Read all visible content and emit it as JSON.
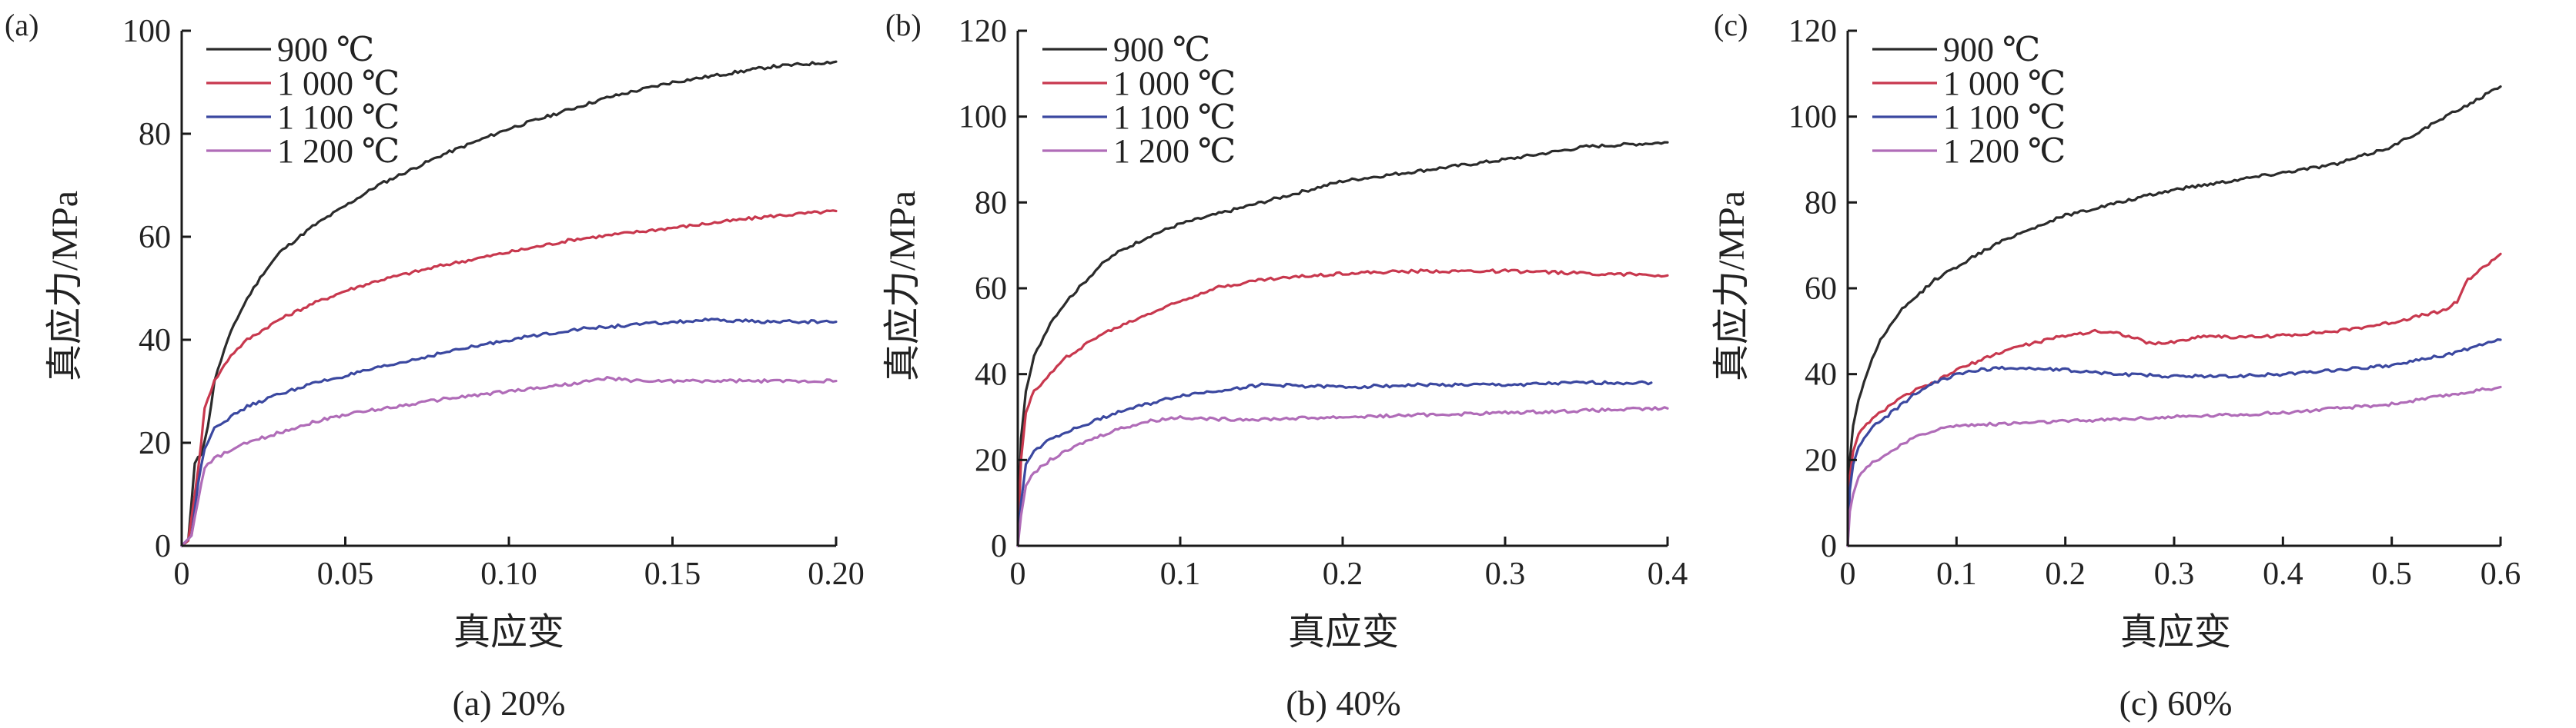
{
  "chart_data": [
    {
      "type": "line",
      "panel_tag": "(a)",
      "caption": "(a) 20%",
      "xlabel": "真应变",
      "ylabel": "真应力/MPa",
      "xlim": [
        0,
        0.2
      ],
      "ylim": [
        0,
        100
      ],
      "xticks": [
        "0",
        "0.05",
        "0.10",
        "0.15",
        "0.20"
      ],
      "yticks": [
        "0",
        "20",
        "40",
        "60",
        "80",
        "100"
      ],
      "legend": "top-left",
      "series": [
        {
          "name": "900 ℃",
          "color": "#2b2b2b",
          "points": [
            [
              0,
              0
            ],
            [
              0.002,
              1
            ],
            [
              0.004,
              16
            ],
            [
              0.005,
              17
            ],
            [
              0.006,
              18
            ],
            [
              0.008,
              23
            ],
            [
              0.01,
              32
            ],
            [
              0.013,
              38
            ],
            [
              0.016,
              43
            ],
            [
              0.02,
              48
            ],
            [
              0.025,
              53
            ],
            [
              0.03,
              57
            ],
            [
              0.04,
              62
            ],
            [
              0.05,
              66
            ],
            [
              0.06,
              70
            ],
            [
              0.07,
              73
            ],
            [
              0.08,
              76
            ],
            [
              0.09,
              78.5
            ],
            [
              0.1,
              81
            ],
            [
              0.11,
              83
            ],
            [
              0.12,
              85
            ],
            [
              0.13,
              87
            ],
            [
              0.14,
              88.5
            ],
            [
              0.15,
              90
            ],
            [
              0.16,
              91
            ],
            [
              0.17,
              92
            ],
            [
              0.18,
              93
            ],
            [
              0.19,
              93.5
            ],
            [
              0.2,
              94
            ]
          ]
        },
        {
          "name": "1 000 ℃",
          "color": "#c8384e",
          "points": [
            [
              0,
              0
            ],
            [
              0.002,
              1
            ],
            [
              0.004,
              10
            ],
            [
              0.006,
              20
            ],
            [
              0.007,
              27
            ],
            [
              0.01,
              32
            ],
            [
              0.015,
              37
            ],
            [
              0.02,
              40
            ],
            [
              0.03,
              44
            ],
            [
              0.04,
              47
            ],
            [
              0.05,
              49.5
            ],
            [
              0.06,
              51.5
            ],
            [
              0.08,
              54.5
            ],
            [
              0.1,
              57
            ],
            [
              0.12,
              59.5
            ],
            [
              0.14,
              61
            ],
            [
              0.16,
              62.5
            ],
            [
              0.18,
              64
            ],
            [
              0.2,
              65
            ]
          ]
        },
        {
          "name": "1 100 ℃",
          "color": "#3b48a0",
          "points": [
            [
              0,
              0
            ],
            [
              0.003,
              2
            ],
            [
              0.005,
              12
            ],
            [
              0.007,
              19
            ],
            [
              0.01,
              23
            ],
            [
              0.015,
              25
            ],
            [
              0.02,
              27
            ],
            [
              0.03,
              29.5
            ],
            [
              0.04,
              31.5
            ],
            [
              0.05,
              33
            ],
            [
              0.06,
              34.5
            ],
            [
              0.08,
              37.5
            ],
            [
              0.1,
              40
            ],
            [
              0.12,
              42
            ],
            [
              0.14,
              43
            ],
            [
              0.16,
              43.8
            ],
            [
              0.18,
              43.5
            ],
            [
              0.2,
              43.5
            ]
          ]
        },
        {
          "name": "1 200 ℃",
          "color": "#b06cb8",
          "points": [
            [
              0,
              0
            ],
            [
              0.003,
              2
            ],
            [
              0.005,
              9
            ],
            [
              0.007,
              15
            ],
            [
              0.01,
              17
            ],
            [
              0.015,
              18.5
            ],
            [
              0.02,
              20
            ],
            [
              0.03,
              22
            ],
            [
              0.04,
              24
            ],
            [
              0.05,
              25.5
            ],
            [
              0.06,
              26.5
            ],
            [
              0.08,
              28.5
            ],
            [
              0.1,
              30
            ],
            [
              0.12,
              31.5
            ],
            [
              0.13,
              32.5
            ],
            [
              0.14,
              32
            ],
            [
              0.16,
              32
            ],
            [
              0.18,
              32
            ],
            [
              0.2,
              32
            ]
          ]
        }
      ]
    },
    {
      "type": "line",
      "panel_tag": "(b)",
      "caption": "(b) 40%",
      "xlabel": "真应变",
      "ylabel": "真应力/MPa",
      "xlim": [
        0,
        0.4
      ],
      "ylim": [
        0,
        120
      ],
      "xticks": [
        "0",
        "0.1",
        "0.2",
        "0.3",
        "0.4"
      ],
      "yticks": [
        "0",
        "20",
        "40",
        "60",
        "80",
        "100",
        "120"
      ],
      "legend": "top-left",
      "series": [
        {
          "name": "900 ℃",
          "color": "#2b2b2b",
          "points": [
            [
              0,
              0
            ],
            [
              0.002,
              25
            ],
            [
              0.005,
              36
            ],
            [
              0.01,
              44
            ],
            [
              0.02,
              52
            ],
            [
              0.03,
              57
            ],
            [
              0.04,
              61
            ],
            [
              0.05,
              65
            ],
            [
              0.06,
              68
            ],
            [
              0.08,
              72
            ],
            [
              0.1,
              75
            ],
            [
              0.12,
              77
            ],
            [
              0.15,
              80
            ],
            [
              0.2,
              85
            ],
            [
              0.25,
              87.5
            ],
            [
              0.3,
              90
            ],
            [
              0.35,
              93
            ],
            [
              0.4,
              94
            ]
          ]
        },
        {
          "name": "1 000 ℃",
          "color": "#c8384e",
          "points": [
            [
              0,
              0
            ],
            [
              0.002,
              20
            ],
            [
              0.005,
              31
            ],
            [
              0.01,
              36
            ],
            [
              0.02,
              40
            ],
            [
              0.03,
              44
            ],
            [
              0.05,
              49
            ],
            [
              0.08,
              54
            ],
            [
              0.1,
              57
            ],
            [
              0.12,
              60
            ],
            [
              0.15,
              62
            ],
            [
              0.2,
              63.5
            ],
            [
              0.25,
              64
            ],
            [
              0.3,
              64
            ],
            [
              0.35,
              63.5
            ],
            [
              0.4,
              63
            ]
          ]
        },
        {
          "name": "1 100 ℃",
          "color": "#3b48a0",
          "points": [
            [
              0,
              0
            ],
            [
              0.002,
              10
            ],
            [
              0.005,
              19
            ],
            [
              0.01,
              22
            ],
            [
              0.02,
              25
            ],
            [
              0.04,
              28
            ],
            [
              0.06,
              31
            ],
            [
              0.08,
              33
            ],
            [
              0.1,
              35
            ],
            [
              0.12,
              36
            ],
            [
              0.15,
              37.5
            ],
            [
              0.2,
              37
            ],
            [
              0.25,
              37.5
            ],
            [
              0.3,
              37.5
            ],
            [
              0.35,
              38
            ],
            [
              0.39,
              38
            ]
          ]
        },
        {
          "name": "1 200 ℃",
          "color": "#b06cb8",
          "points": [
            [
              0,
              0
            ],
            [
              0.002,
              7
            ],
            [
              0.005,
              14
            ],
            [
              0.01,
              17
            ],
            [
              0.02,
              20
            ],
            [
              0.04,
              24
            ],
            [
              0.06,
              27
            ],
            [
              0.08,
              29
            ],
            [
              0.1,
              30
            ],
            [
              0.12,
              29.5
            ],
            [
              0.15,
              29.5
            ],
            [
              0.2,
              30
            ],
            [
              0.25,
              30.5
            ],
            [
              0.3,
              31
            ],
            [
              0.35,
              31.5
            ],
            [
              0.4,
              32
            ]
          ]
        }
      ]
    },
    {
      "type": "line",
      "panel_tag": "(c)",
      "caption": "(c) 60%",
      "xlabel": "真应变",
      "ylabel": "真应力/MPa",
      "xlim": [
        0,
        0.6
      ],
      "ylim": [
        0,
        120
      ],
      "xticks": [
        "0",
        "0.1",
        "0.2",
        "0.3",
        "0.4",
        "0.5",
        "0.6"
      ],
      "yticks": [
        "0",
        "20",
        "40",
        "60",
        "80",
        "100",
        "120"
      ],
      "legend": "top-left",
      "series": [
        {
          "name": "900 ℃",
          "color": "#2b2b2b",
          "points": [
            [
              0,
              0
            ],
            [
              0.002,
              20
            ],
            [
              0.005,
              28
            ],
            [
              0.01,
              34
            ],
            [
              0.02,
              42
            ],
            [
              0.03,
              48
            ],
            [
              0.05,
              55
            ],
            [
              0.08,
              62
            ],
            [
              0.1,
              65
            ],
            [
              0.12,
              68
            ],
            [
              0.15,
              72
            ],
            [
              0.2,
              77
            ],
            [
              0.25,
              80
            ],
            [
              0.3,
              83
            ],
            [
              0.35,
              85
            ],
            [
              0.4,
              87
            ],
            [
              0.45,
              89
            ],
            [
              0.5,
              93
            ],
            [
              0.55,
              100
            ],
            [
              0.6,
              107
            ]
          ]
        },
        {
          "name": "1 000 ℃",
          "color": "#c8384e",
          "points": [
            [
              0,
              0
            ],
            [
              0.002,
              16
            ],
            [
              0.005,
              22
            ],
            [
              0.01,
              26
            ],
            [
              0.02,
              29
            ],
            [
              0.04,
              33
            ],
            [
              0.06,
              36
            ],
            [
              0.08,
              38
            ],
            [
              0.1,
              41
            ],
            [
              0.12,
              43
            ],
            [
              0.15,
              46
            ],
            [
              0.2,
              49
            ],
            [
              0.23,
              50
            ],
            [
              0.25,
              49.5
            ],
            [
              0.28,
              47
            ],
            [
              0.3,
              47.5
            ],
            [
              0.33,
              49
            ],
            [
              0.36,
              48.5
            ],
            [
              0.4,
              49
            ],
            [
              0.45,
              50
            ],
            [
              0.5,
              52
            ],
            [
              0.55,
              55
            ],
            [
              0.56,
              57
            ],
            [
              0.57,
              62
            ],
            [
              0.6,
              68
            ]
          ]
        },
        {
          "name": "1 100 ℃",
          "color": "#3b48a0",
          "points": [
            [
              0,
              0
            ],
            [
              0.002,
              13
            ],
            [
              0.005,
              19
            ],
            [
              0.01,
              23
            ],
            [
              0.02,
              27
            ],
            [
              0.04,
              31
            ],
            [
              0.06,
              35
            ],
            [
              0.08,
              38
            ],
            [
              0.1,
              40
            ],
            [
              0.12,
              41
            ],
            [
              0.15,
              41.5
            ],
            [
              0.2,
              41
            ],
            [
              0.25,
              40
            ],
            [
              0.3,
              39.5
            ],
            [
              0.35,
              39.5
            ],
            [
              0.4,
              40
            ],
            [
              0.45,
              41
            ],
            [
              0.5,
              42
            ],
            [
              0.55,
              44.5
            ],
            [
              0.6,
              48
            ]
          ]
        },
        {
          "name": "1 200 ℃",
          "color": "#b06cb8",
          "points": [
            [
              0,
              0
            ],
            [
              0.002,
              8
            ],
            [
              0.005,
              12
            ],
            [
              0.01,
              16
            ],
            [
              0.02,
              19
            ],
            [
              0.04,
              22
            ],
            [
              0.06,
              25
            ],
            [
              0.08,
              27
            ],
            [
              0.1,
              28
            ],
            [
              0.15,
              28.5
            ],
            [
              0.2,
              29
            ],
            [
              0.25,
              29.5
            ],
            [
              0.3,
              30
            ],
            [
              0.35,
              30.5
            ],
            [
              0.4,
              31
            ],
            [
              0.45,
              32
            ],
            [
              0.5,
              33
            ],
            [
              0.55,
              35
            ],
            [
              0.6,
              37
            ]
          ]
        }
      ]
    }
  ]
}
